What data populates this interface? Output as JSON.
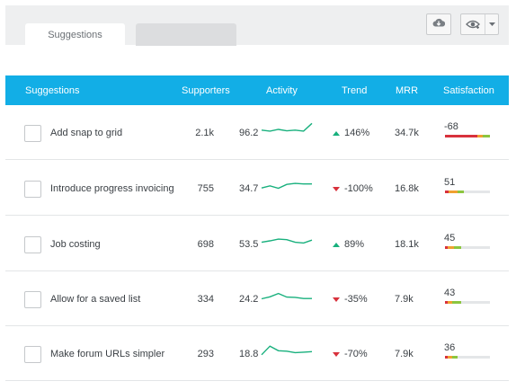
{
  "tabs": [
    {
      "label": "Suggestions"
    },
    {
      "label": ""
    }
  ],
  "toolbar": {
    "cloud_icon": "cloud-download-icon",
    "view_icon": "eye-icon",
    "caret_icon": "chevron-down-icon"
  },
  "columns": {
    "suggestions": "Suggestions",
    "supporters": "Supporters",
    "activity": "Activity",
    "trend": "Trend",
    "mrr": "MRR",
    "satisfaction": "Satisfaction"
  },
  "colors": {
    "header": "#12aee6",
    "sparkline": "#18b07d",
    "up": "#18b07d",
    "down": "#d8313c",
    "sat_red": "#d8313c",
    "sat_orange": "#f0a030",
    "sat_green": "#8cc63f"
  },
  "rows": [
    {
      "title": "Add snap to grid",
      "supporters": "2.1k",
      "activity": "96.2",
      "trend_dir": "up",
      "trend": "146%",
      "mrr": "34.7k",
      "satisfaction": "-68",
      "spark": [
        0.55,
        0.62,
        0.5,
        0.6,
        0.55,
        0.62,
        0.08
      ],
      "sat": [
        0.72,
        0.12,
        0.16
      ]
    },
    {
      "title": "Introduce progress invoicing",
      "supporters": "755",
      "activity": "34.7",
      "trend_dir": "down",
      "trend": "-100%",
      "mrr": "16.8k",
      "satisfaction": "51",
      "spark": [
        0.7,
        0.55,
        0.72,
        0.45,
        0.38,
        0.42,
        0.42
      ],
      "sat": [
        0.08,
        0.2,
        0.14
      ]
    },
    {
      "title": "Job costing",
      "supporters": "698",
      "activity": "53.5",
      "trend_dir": "up",
      "trend": "89%",
      "mrr": "18.1k",
      "satisfaction": "45",
      "spark": [
        0.6,
        0.5,
        0.38,
        0.42,
        0.6,
        0.65,
        0.45
      ],
      "sat": [
        0.06,
        0.14,
        0.16
      ]
    },
    {
      "title": "Allow for a saved list",
      "supporters": "334",
      "activity": "24.2",
      "trend_dir": "down",
      "trend": "-35%",
      "mrr": "7.9k",
      "satisfaction": "43",
      "spark": [
        0.72,
        0.58,
        0.35,
        0.6,
        0.62,
        0.7,
        0.7
      ],
      "sat": [
        0.06,
        0.1,
        0.2
      ]
    },
    {
      "title": "Make forum URLs simpler",
      "supporters": "293",
      "activity": "18.8",
      "trend_dir": "down",
      "trend": "-70%",
      "mrr": "7.9k",
      "satisfaction": "36",
      "spark": [
        0.8,
        0.2,
        0.52,
        0.55,
        0.65,
        0.62,
        0.58
      ],
      "sat": [
        0.06,
        0.1,
        0.12
      ]
    }
  ]
}
